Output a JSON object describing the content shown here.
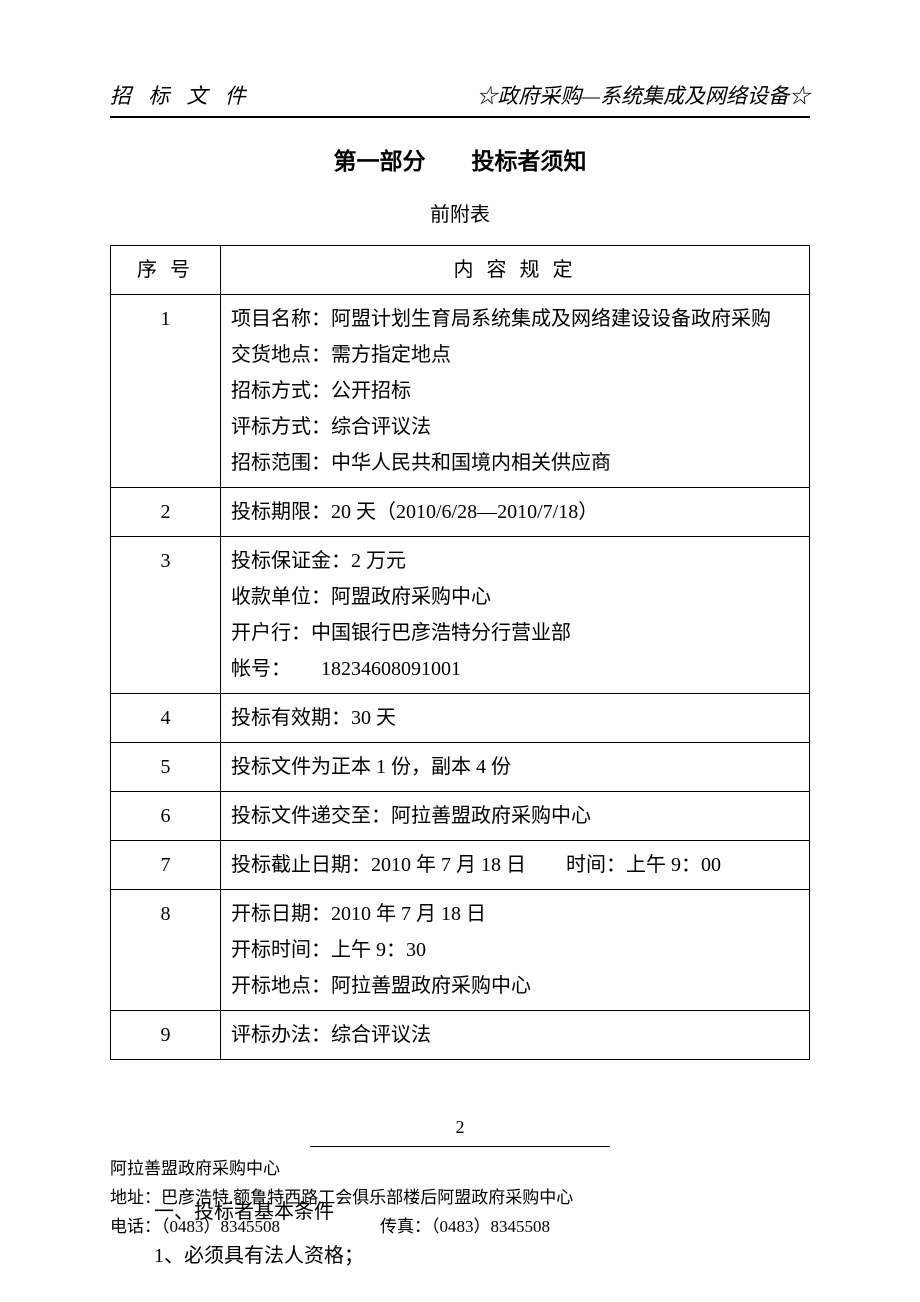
{
  "header": {
    "left": "招 标 文 件",
    "right": "☆政府采购—系统集成及网络设备☆"
  },
  "section_title": "第一部分　　投标者须知",
  "pre_table_label": "前附表",
  "table": {
    "headers": {
      "seq": "序 号",
      "content": "内 容 规 定"
    },
    "rows": [
      {
        "seq": "1",
        "lines": [
          "项目名称：阿盟计划生育局系统集成及网络建设设备政府采购",
          "交货地点：需方指定地点",
          "招标方式：公开招标",
          "评标方式：综合评议法",
          "招标范围：中华人民共和国境内相关供应商"
        ]
      },
      {
        "seq": "2",
        "lines": [
          "投标期限：20 天（2010/6/28—2010/7/18）"
        ]
      },
      {
        "seq": "3",
        "lines": [
          "投标保证金：2 万元",
          "收款单位：阿盟政府采购中心",
          "开户行：中国银行巴彦浩特分行营业部",
          "帐号：　　18234608091001"
        ]
      },
      {
        "seq": "4",
        "lines": [
          "投标有效期：30 天"
        ]
      },
      {
        "seq": "5",
        "lines": [
          "投标文件为正本 1 份，副本 4 份"
        ]
      },
      {
        "seq": "6",
        "lines": [
          "投标文件递交至：阿拉善盟政府采购中心"
        ]
      },
      {
        "seq": "7",
        "lines": [
          "投标截止日期：2010 年 7 月 18 日　　时间：上午 9：00"
        ]
      },
      {
        "seq": "8",
        "lines": [
          "开标日期：2010 年 7 月 18 日",
          "开标时间：上午 9：30",
          "开标地点：阿拉善盟政府采购中心"
        ]
      },
      {
        "seq": "9",
        "lines": [
          "评标办法：综合评议法"
        ]
      }
    ]
  },
  "body": {
    "heading": "一、投标者基本条件",
    "item1": "1、必须具有法人资格；"
  },
  "page_number": "2",
  "footer": {
    "org": "阿拉善盟政府采购中心",
    "address": "地址：巴彦浩特.额鲁特西路工会俱乐部楼后阿盟政府采购中心",
    "phone": "电话：（0483）8345508",
    "fax": "传真：（0483）8345508"
  }
}
